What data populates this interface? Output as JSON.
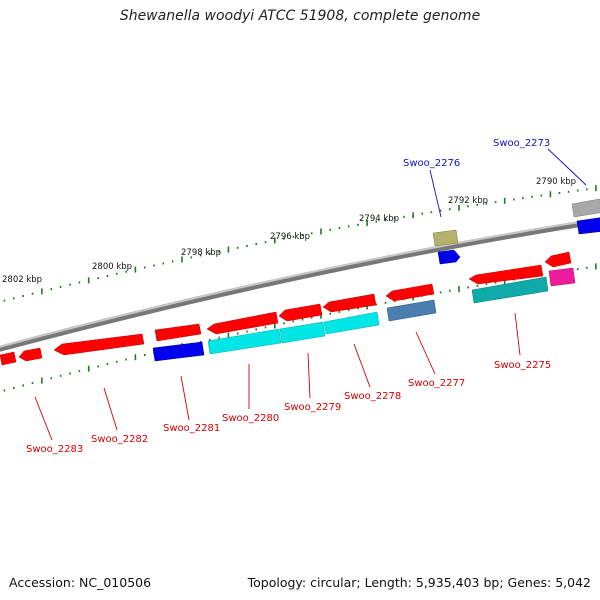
{
  "title": "Shewanella woodyi ATCC 51908, complete genome",
  "footer": {
    "accession": "Accession: NC_010506",
    "summary": "Topology: circular; Length: 5,935,403 bp; Genes: 5,042"
  },
  "scale_labels": [
    "2802 kbp",
    "2800 kbp",
    "2798 kbp",
    "2796 kbp",
    "2794 kbp",
    "2792 kbp",
    "2790 kbp"
  ],
  "gene_labels": [
    {
      "text": "Swoo_2283",
      "color": "#d40000"
    },
    {
      "text": "Swoo_2282",
      "color": "#d40000"
    },
    {
      "text": "Swoo_2281",
      "color": "#d40000"
    },
    {
      "text": "Swoo_2280",
      "color": "#d40000"
    },
    {
      "text": "Swoo_2279",
      "color": "#d40000"
    },
    {
      "text": "Swoo_2278",
      "color": "#d40000"
    },
    {
      "text": "Swoo_2277",
      "color": "#d40000"
    },
    {
      "text": "Swoo_2275",
      "color": "#d40000"
    },
    {
      "text": "Swoo_2276",
      "color": "#1010c0"
    },
    {
      "text": "Swoo_2273",
      "color": "#1010c0"
    }
  ],
  "colors": {
    "backbone": "#8a8a8a",
    "gene_red": "#ff0000",
    "cog_cyan": "#00e5e5",
    "cog_blue": "#0000ee",
    "cog_teal": "#11aaaa",
    "cog_steel": "#4a7eb0",
    "cog_magenta": "#ee1c9c",
    "cog_olive": "#b5b06a",
    "tick_green": "#1e7a1e"
  }
}
